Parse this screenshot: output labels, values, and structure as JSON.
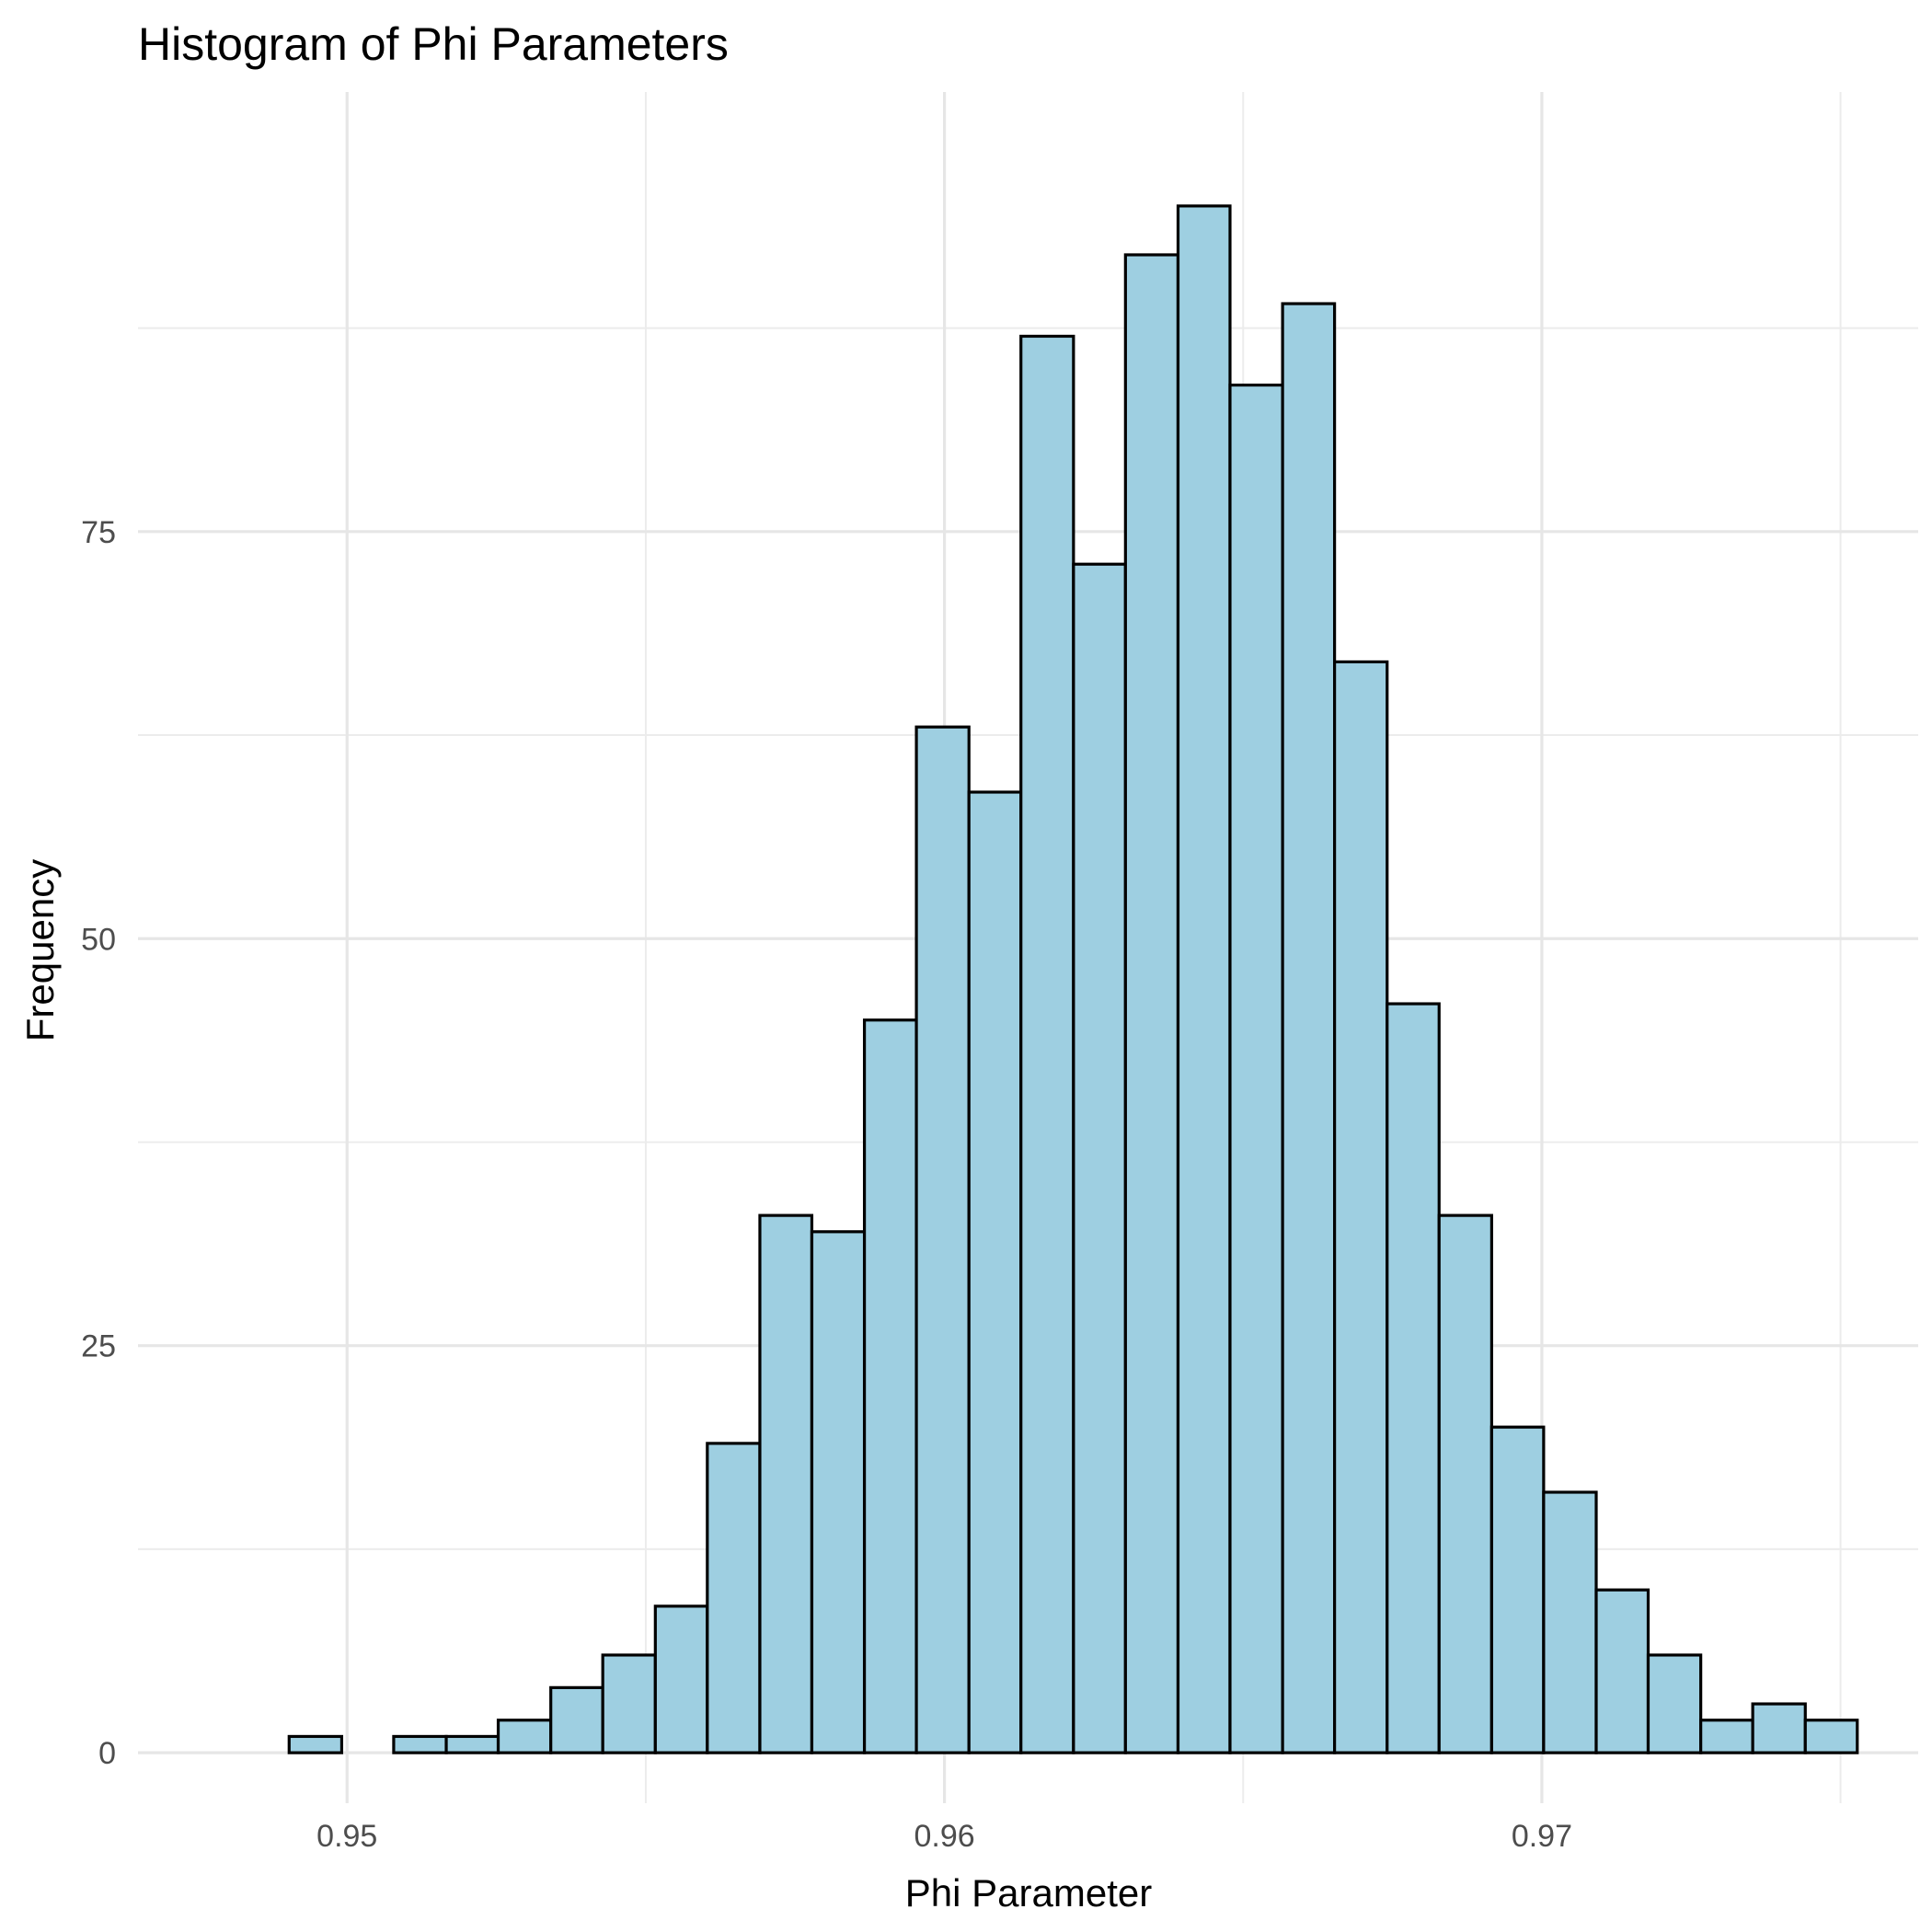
{
  "chart_data": {
    "type": "bar",
    "title": "Histogram of Phi Parameters",
    "xlabel": "Phi Parameter",
    "ylabel": "Frequency",
    "xlim": [
      0.9465,
      0.9763
    ],
    "ylim": [
      -3.1,
      102
    ],
    "x_ticks": [
      {
        "value": 0.95,
        "label": "0.95"
      },
      {
        "value": 0.96,
        "label": "0.96"
      },
      {
        "value": 0.97,
        "label": "0.97"
      }
    ],
    "x_minor_ticks": [
      0.955,
      0.965,
      0.975
    ],
    "y_ticks": [
      {
        "value": 0,
        "label": "0"
      },
      {
        "value": 25,
        "label": "25"
      },
      {
        "value": 50,
        "label": "50"
      },
      {
        "value": 75,
        "label": "75"
      }
    ],
    "y_minor_ticks": [
      12.5,
      37.5,
      62.5,
      87.5
    ],
    "grid": true,
    "bin_width": 0.000875,
    "bins": [
      {
        "x0": 0.94903,
        "x1": 0.94991,
        "count": 1
      },
      {
        "x0": 0.94991,
        "x1": 0.95078,
        "count": 0
      },
      {
        "x0": 0.95078,
        "x1": 0.95166,
        "count": 1
      },
      {
        "x0": 0.95166,
        "x1": 0.95253,
        "count": 1
      },
      {
        "x0": 0.95253,
        "x1": 0.95341,
        "count": 2
      },
      {
        "x0": 0.95341,
        "x1": 0.95428,
        "count": 4
      },
      {
        "x0": 0.95428,
        "x1": 0.95516,
        "count": 6
      },
      {
        "x0": 0.95516,
        "x1": 0.95603,
        "count": 9
      },
      {
        "x0": 0.95603,
        "x1": 0.95691,
        "count": 19
      },
      {
        "x0": 0.95691,
        "x1": 0.95778,
        "count": 33
      },
      {
        "x0": 0.95778,
        "x1": 0.95866,
        "count": 32
      },
      {
        "x0": 0.95866,
        "x1": 0.95953,
        "count": 45
      },
      {
        "x0": 0.95953,
        "x1": 0.96041,
        "count": 63
      },
      {
        "x0": 0.96041,
        "x1": 0.96128,
        "count": 59
      },
      {
        "x0": 0.96128,
        "x1": 0.96216,
        "count": 87
      },
      {
        "x0": 0.96216,
        "x1": 0.96303,
        "count": 73
      },
      {
        "x0": 0.96303,
        "x1": 0.96391,
        "count": 92
      },
      {
        "x0": 0.96391,
        "x1": 0.96478,
        "count": 95
      },
      {
        "x0": 0.96478,
        "x1": 0.96566,
        "count": 84
      },
      {
        "x0": 0.96566,
        "x1": 0.96653,
        "count": 89
      },
      {
        "x0": 0.96653,
        "x1": 0.96741,
        "count": 67
      },
      {
        "x0": 0.96741,
        "x1": 0.96828,
        "count": 46
      },
      {
        "x0": 0.96828,
        "x1": 0.96916,
        "count": 33
      },
      {
        "x0": 0.96916,
        "x1": 0.97003,
        "count": 20
      },
      {
        "x0": 0.97003,
        "x1": 0.97091,
        "count": 16
      },
      {
        "x0": 0.97091,
        "x1": 0.97178,
        "count": 10
      },
      {
        "x0": 0.97178,
        "x1": 0.97266,
        "count": 6
      },
      {
        "x0": 0.97266,
        "x1": 0.97353,
        "count": 2
      },
      {
        "x0": 0.97353,
        "x1": 0.97441,
        "count": 3
      },
      {
        "x0": 0.97441,
        "x1": 0.97528,
        "count": 2
      }
    ],
    "colors": {
      "fill": "#9ecfe1",
      "stroke": "#000000"
    }
  }
}
